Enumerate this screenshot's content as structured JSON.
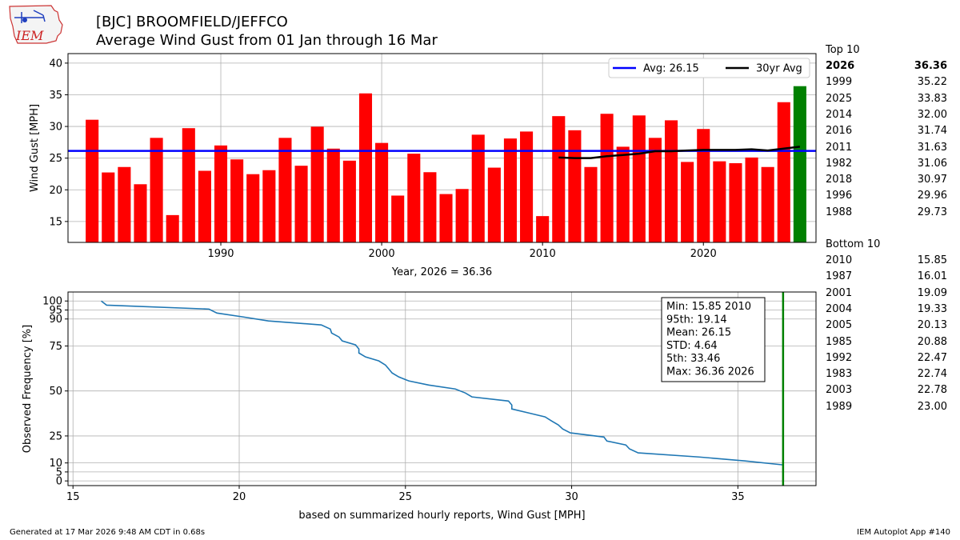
{
  "header": {
    "logo_text": "IEM",
    "title_line1": "[BJC] BROOMFIELD/JEFFCO",
    "title_line2": "Average Wind Gust from 01 Jan through 16 Mar"
  },
  "top10": {
    "label": "Top 10",
    "rows": [
      {
        "year": "2026",
        "value": "36.36"
      },
      {
        "year": "1999",
        "value": "35.22"
      },
      {
        "year": "2025",
        "value": "33.83"
      },
      {
        "year": "2014",
        "value": "32.00"
      },
      {
        "year": "2016",
        "value": "31.74"
      },
      {
        "year": "2011",
        "value": "31.63"
      },
      {
        "year": "1982",
        "value": "31.06"
      },
      {
        "year": "2018",
        "value": "30.97"
      },
      {
        "year": "1996",
        "value": "29.96"
      },
      {
        "year": "1988",
        "value": "29.73"
      }
    ]
  },
  "bottom10": {
    "label": "Bottom 10",
    "rows": [
      {
        "year": "2010",
        "value": "15.85"
      },
      {
        "year": "1987",
        "value": "16.01"
      },
      {
        "year": "2001",
        "value": "19.09"
      },
      {
        "year": "2004",
        "value": "19.33"
      },
      {
        "year": "2005",
        "value": "20.13"
      },
      {
        "year": "1985",
        "value": "20.88"
      },
      {
        "year": "1992",
        "value": "22.47"
      },
      {
        "year": "1983",
        "value": "22.74"
      },
      {
        "year": "2003",
        "value": "22.78"
      },
      {
        "year": "1989",
        "value": "23.00"
      }
    ]
  },
  "footer": {
    "left": "Generated at 17 Mar 2026 9:48 AM CDT in 0.68s",
    "right": "IEM Autoplot App #140"
  },
  "colors": {
    "bar": "#ff0000",
    "highlight_bar": "#008000",
    "avg_line": "#0000ff",
    "trail_line": "#000000",
    "cdf_line": "#1f77b4",
    "marker_line": "#008000",
    "grid": "#b0b0b0"
  },
  "chart_data": [
    {
      "type": "bar",
      "ylabel": "Wind Gust [MPH]",
      "xlabel": "Year, 2026 = 36.36",
      "xlim": [
        1980.5,
        2027.0
      ],
      "ylim": [
        11.7,
        41.5
      ],
      "yticks": [
        15,
        20,
        25,
        30,
        35,
        40
      ],
      "xticks": [
        1990,
        2000,
        2010,
        2020
      ],
      "years": [
        1982,
        1983,
        1984,
        1985,
        1986,
        1987,
        1988,
        1989,
        1990,
        1991,
        1992,
        1993,
        1994,
        1995,
        1996,
        1997,
        1998,
        1999,
        2000,
        2001,
        2002,
        2003,
        2004,
        2005,
        2006,
        2007,
        2008,
        2009,
        2010,
        2011,
        2012,
        2013,
        2014,
        2015,
        2016,
        2017,
        2018,
        2019,
        2020,
        2021,
        2022,
        2023,
        2024,
        2025,
        2026
      ],
      "values": [
        31.06,
        22.74,
        23.6,
        20.88,
        28.2,
        16.01,
        29.73,
        23.0,
        27.0,
        24.8,
        22.47,
        23.1,
        28.2,
        23.8,
        29.96,
        26.5,
        24.6,
        35.22,
        27.4,
        19.09,
        25.7,
        22.78,
        19.33,
        20.13,
        28.7,
        23.5,
        28.1,
        29.2,
        15.85,
        31.63,
        29.4,
        23.6,
        32.0,
        26.8,
        31.74,
        28.2,
        30.97,
        24.4,
        29.6,
        24.5,
        24.2,
        25.1,
        23.6,
        33.83,
        36.36
      ],
      "highlight_year": 2026,
      "average": {
        "label": "Avg: 26.15",
        "value": 26.15
      },
      "trailing_avg": {
        "label": "30yr Avg",
        "years": [
          2011,
          2012,
          2013,
          2014,
          2015,
          2016,
          2017,
          2018,
          2019,
          2020,
          2021,
          2022,
          2023,
          2024,
          2025,
          2026
        ],
        "values": [
          25.1,
          25.0,
          25.0,
          25.3,
          25.5,
          25.7,
          26.1,
          26.1,
          26.2,
          26.3,
          26.3,
          26.3,
          26.4,
          26.2,
          26.5,
          26.8
        ]
      },
      "legend_position": "upper-right"
    },
    {
      "type": "line",
      "ylabel": "Observed Frequency [%]",
      "xlabel": "based on summarized hourly reports, Wind Gust [MPH]",
      "xlim": [
        14.85,
        37.35
      ],
      "ylim": [
        -2.6,
        105
      ],
      "xticks": [
        15,
        20,
        25,
        30,
        35
      ],
      "ytick_values": [
        0,
        5,
        10,
        25,
        50,
        75,
        90,
        95,
        100
      ],
      "ytick_labels": [
        "0",
        "5",
        "10",
        "25",
        "50",
        "75",
        "90",
        "95",
        "100"
      ],
      "x": [
        15.85,
        16.01,
        19.09,
        19.33,
        20.13,
        20.88,
        22.47,
        22.74,
        22.78,
        23.0,
        23.1,
        23.5,
        23.6,
        23.6,
        23.8,
        24.2,
        24.4,
        24.5,
        24.6,
        24.8,
        25.1,
        25.7,
        26.5,
        26.8,
        27.0,
        28.1,
        28.2,
        28.2,
        28.7,
        29.2,
        29.4,
        29.6,
        29.73,
        29.96,
        30.97,
        31.06,
        31.63,
        31.74,
        32.0,
        33.83,
        35.22,
        36.36
      ],
      "y": [
        100,
        97.7,
        95.5,
        93.3,
        91.1,
        88.9,
        86.7,
        84.4,
        82.2,
        80.0,
        77.8,
        75.6,
        73.3,
        71.1,
        68.9,
        66.7,
        64.4,
        62.2,
        60.0,
        57.8,
        55.6,
        53.3,
        51.1,
        48.9,
        46.7,
        44.4,
        42.2,
        40.0,
        37.8,
        35.6,
        33.3,
        31.1,
        28.9,
        26.7,
        24.4,
        22.2,
        20.0,
        17.8,
        15.6,
        13.3,
        11.1,
        8.9
      ],
      "marker_x": 36.36,
      "stats_lines": [
        "Min: 15.85 2010",
        "95th: 19.14",
        "Mean: 26.15",
        "STD: 4.64",
        "5th: 33.46",
        "Max: 36.36 2026"
      ]
    }
  ]
}
